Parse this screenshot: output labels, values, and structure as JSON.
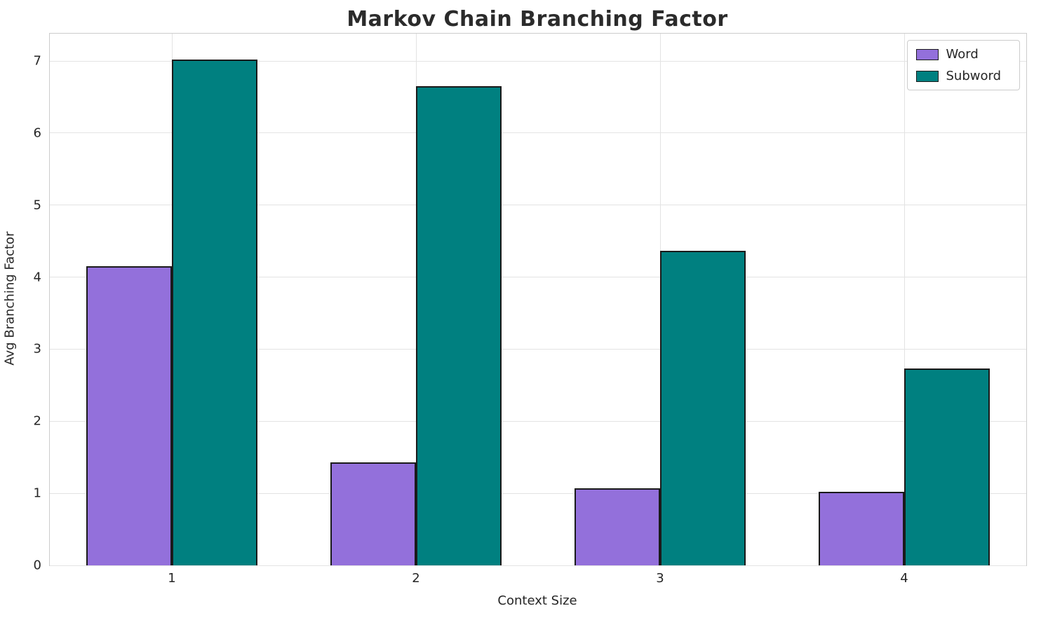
{
  "chart_data": {
    "type": "bar",
    "title": "Markov Chain Branching Factor",
    "xlabel": "Context Size",
    "ylabel": "Avg Branching Factor",
    "categories": [
      "1",
      "2",
      "3",
      "4"
    ],
    "series": [
      {
        "name": "Word",
        "color": "#9370DB",
        "values": [
          4.15,
          1.43,
          1.07,
          1.02
        ]
      },
      {
        "name": "Subword",
        "color": "#008080",
        "values": [
          7.02,
          6.65,
          4.37,
          2.73
        ]
      }
    ],
    "ylim": [
      0,
      7.38
    ],
    "yticks": [
      0,
      1,
      2,
      3,
      4,
      5,
      6,
      7
    ],
    "bar_width_fraction": 0.35,
    "grid": true,
    "legend_position": "upper right",
    "edge_color": "#1a1a1a",
    "grid_color": "#e3e3e3"
  }
}
